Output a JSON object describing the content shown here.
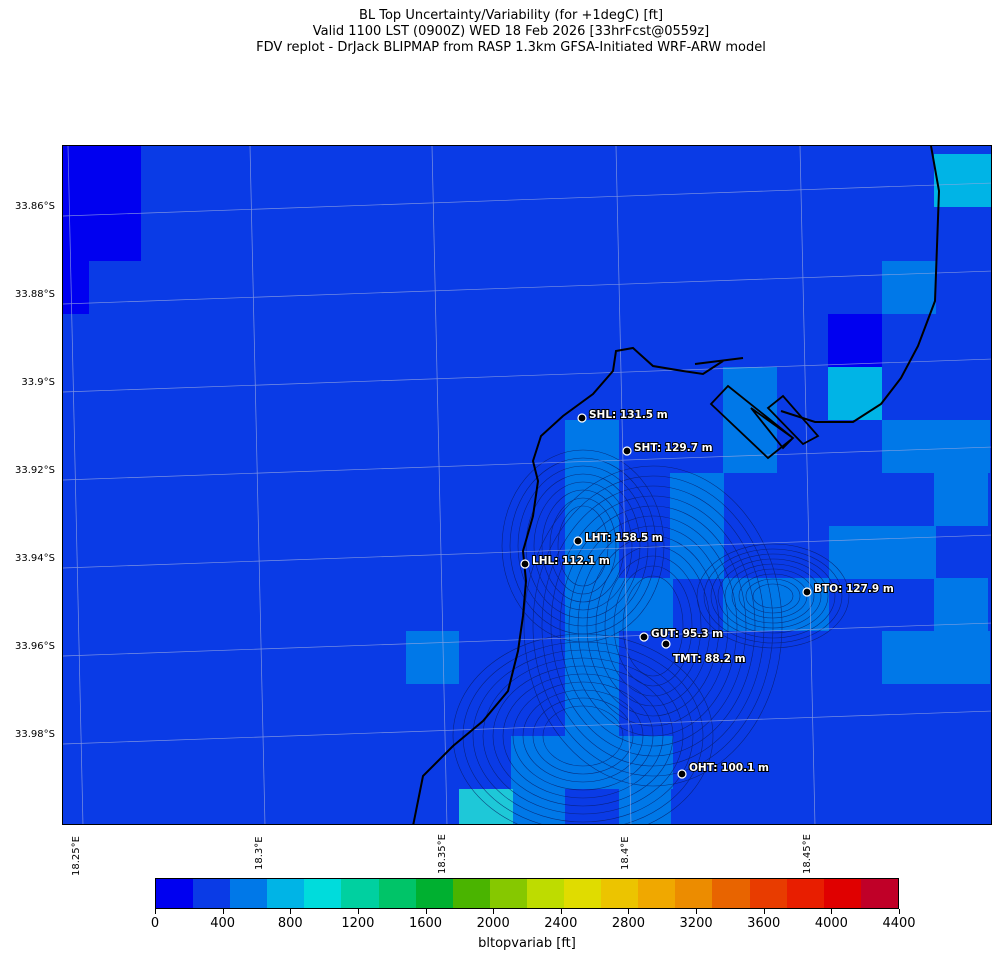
{
  "title": {
    "line1": "BL Top Uncertainty/Variability (for +1degC) [ft]",
    "line2": "Valid 1100 LST (0900Z) WED 18 Feb 2026 [33hrFcst@0559z]",
    "line3": "FDV replot - DrJack BLIPMAP from RASP 1.3km GFSA-Initiated WRF-ARW model"
  },
  "latitude_labels": [
    "33.86°S",
    "33.88°S",
    "33.9°S",
    "33.92°S",
    "33.94°S",
    "33.96°S",
    "33.98°S"
  ],
  "longitude_labels": [
    "18.25°E",
    "18.3°E",
    "18.35°E",
    "18.4°E",
    "18.45°E"
  ],
  "stations": [
    {
      "label": "SHL: 131.5 m"
    },
    {
      "label": "SHT: 129.7 m"
    },
    {
      "label": "LHT: 158.5 m"
    },
    {
      "label": "LHL: 112.1 m"
    },
    {
      "label": "BTO: 127.9 m"
    },
    {
      "label": "GUT: 95.3 m"
    },
    {
      "label": "TMT: 88.2 m"
    },
    {
      "label": "OHT: 100.1 m"
    }
  ],
  "colorbar": {
    "title": "bltopvariab [ft]",
    "tick_labels": [
      "0",
      "400",
      "800",
      "1200",
      "1600",
      "2000",
      "2400",
      "2800",
      "3200",
      "3600",
      "4000",
      "4400"
    ],
    "colors": [
      "#0000f0",
      "#0a3be6",
      "#0078e8",
      "#00b4e6",
      "#00dcdc",
      "#00d0a0",
      "#00c468",
      "#00b030",
      "#4ab400",
      "#86c800",
      "#bedc00",
      "#e0dc00",
      "#ecc400",
      "#f0a800",
      "#ec8c00",
      "#e86400",
      "#e83c00",
      "#e81e00",
      "#e00000",
      "#c00028"
    ]
  },
  "field_colors": {
    "background": "#0a3be6",
    "low": "#0000f0",
    "mid": "#0078e8",
    "high": "#00b4e6",
    "highest": "#1ec8d8"
  }
}
